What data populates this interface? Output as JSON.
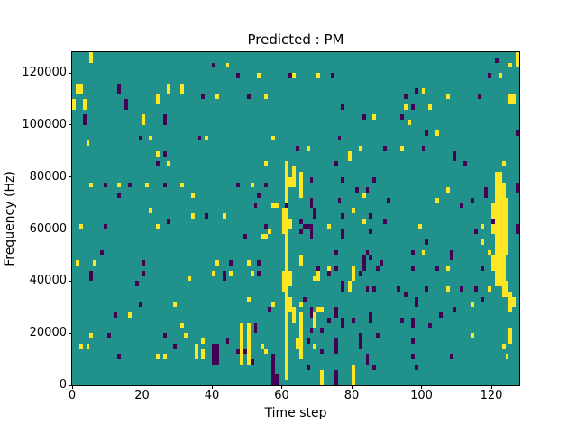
{
  "title": "Predicted : PM",
  "xlabel": "Time step",
  "ylabel": "Frequency (Hz)",
  "colors": {
    "figure_background": "#ffffff",
    "plot_background_mid": "#21918c",
    "yellow": "#fde725",
    "purple": "#440154",
    "axis": "#000000"
  },
  "chart_data": {
    "type": "heatmap",
    "title": "Predicted : PM",
    "xlabel": "Time step",
    "ylabel": "Frequency (Hz)",
    "colormap": "viridis",
    "legend": "none",
    "grid_lines": "off",
    "x_range": [
      0,
      128
    ],
    "y_range": [
      0,
      128000
    ],
    "x_ticks": [
      0,
      20,
      40,
      60,
      80,
      100,
      120
    ],
    "y_ticks": [
      0,
      20000,
      40000,
      60000,
      80000,
      100000,
      120000
    ],
    "grid": {
      "time_steps": 128,
      "freq_bins": 64,
      "hz_per_bin": 2000
    },
    "value_classes": {
      "background": "mid (teal)",
      "yellow": "high",
      "purple": "low"
    },
    "cell_format": "[time_step, bin] or [time_step, bin_start, bin_end] (bin = freq/2000)",
    "cells": {
      "yellow": [
        [
          5,
          62,
          63
        ],
        [
          1,
          56,
          57
        ],
        [
          2,
          56,
          57
        ],
        [
          27,
          56,
          57
        ],
        [
          31,
          56,
          57
        ],
        [
          0,
          53,
          54
        ],
        [
          3,
          53,
          54
        ],
        [
          24,
          54,
          55
        ],
        [
          20,
          50,
          51
        ],
        [
          4,
          46
        ],
        [
          22,
          47
        ],
        [
          24,
          44
        ],
        [
          44,
          61
        ],
        [
          53,
          59
        ],
        [
          63,
          59
        ],
        [
          41,
          55
        ],
        [
          55,
          55
        ],
        [
          38,
          47
        ],
        [
          57,
          47
        ],
        [
          70,
          59
        ],
        [
          95,
          53
        ],
        [
          86,
          51
        ],
        [
          96,
          50
        ],
        [
          67,
          45
        ],
        [
          82,
          45
        ],
        [
          94,
          45
        ],
        [
          79,
          43,
          44
        ],
        [
          127,
          61,
          63
        ],
        [
          125,
          61
        ],
        [
          122,
          59
        ],
        [
          100,
          56
        ],
        [
          107,
          55
        ],
        [
          125,
          54,
          55
        ],
        [
          126,
          54,
          55
        ],
        [
          102,
          53
        ],
        [
          104,
          48
        ],
        [
          27,
          42
        ],
        [
          5,
          38
        ],
        [
          13,
          38
        ],
        [
          21,
          38
        ],
        [
          31,
          38
        ],
        [
          22,
          33
        ],
        [
          2,
          30
        ],
        [
          24,
          30
        ],
        [
          1,
          23
        ],
        [
          6,
          23
        ],
        [
          55,
          42
        ],
        [
          51,
          38
        ],
        [
          34,
          36
        ],
        [
          57,
          34
        ],
        [
          58,
          34
        ],
        [
          34,
          32
        ],
        [
          43,
          32
        ],
        [
          56,
          29
        ],
        [
          54,
          28
        ],
        [
          55,
          28
        ],
        [
          41,
          23
        ],
        [
          50,
          23
        ],
        [
          65,
          36,
          40
        ],
        [
          83,
          36
        ],
        [
          80,
          33
        ],
        [
          83,
          31
        ],
        [
          73,
          30
        ],
        [
          65,
          23,
          24
        ],
        [
          73,
          22
        ],
        [
          80,
          22
        ],
        [
          123,
          42
        ],
        [
          107,
          37
        ],
        [
          104,
          35
        ],
        [
          99,
          30
        ],
        [
          117,
          30
        ],
        [
          117,
          27
        ],
        [
          119,
          25
        ],
        [
          100,
          25
        ],
        [
          107,
          22
        ],
        [
          29,
          15
        ],
        [
          16,
          13
        ],
        [
          31,
          11
        ],
        [
          5,
          9
        ],
        [
          2,
          7
        ],
        [
          4,
          7
        ],
        [
          24,
          5
        ],
        [
          26,
          5
        ],
        [
          33,
          20
        ],
        [
          40,
          21
        ],
        [
          45,
          21
        ],
        [
          51,
          21
        ],
        [
          50,
          16
        ],
        [
          57,
          15
        ],
        [
          32,
          9
        ],
        [
          37,
          8
        ],
        [
          35,
          5,
          7
        ],
        [
          37,
          5,
          6
        ],
        [
          48,
          4,
          11
        ],
        [
          50,
          4,
          11
        ],
        [
          54,
          7
        ],
        [
          55,
          6
        ],
        [
          64,
          7,
          8
        ],
        [
          69,
          20
        ],
        [
          70,
          20,
          21
        ],
        [
          80,
          20,
          21
        ],
        [
          79,
          18,
          19
        ],
        [
          65,
          15
        ],
        [
          70,
          14
        ],
        [
          71,
          14
        ],
        [
          65,
          5,
          13
        ],
        [
          69,
          11,
          13
        ],
        [
          69,
          7
        ],
        [
          71,
          0,
          2
        ],
        [
          80,
          0,
          3
        ],
        [
          107,
          18
        ],
        [
          119,
          18
        ],
        [
          114,
          15
        ],
        [
          126,
          15,
          16
        ],
        [
          114,
          9
        ],
        [
          125,
          8,
          10
        ],
        [
          123,
          7
        ],
        [
          124,
          5
        ],
        [
          60,
          18,
          21
        ],
        [
          60,
          29,
          33
        ],
        [
          61,
          1,
          33
        ],
        [
          61,
          35,
          42
        ],
        [
          62,
          38,
          39
        ],
        [
          62,
          30,
          31
        ],
        [
          62,
          19,
          21
        ],
        [
          62,
          14,
          16
        ],
        [
          63,
          38,
          41
        ],
        [
          63,
          12,
          14
        ],
        [
          120,
          22,
          24
        ],
        [
          120,
          29,
          34
        ],
        [
          121,
          19,
          40
        ],
        [
          122,
          19,
          40
        ],
        [
          123,
          17,
          38
        ],
        [
          124,
          25,
          35
        ],
        [
          124,
          17,
          19
        ],
        [
          125,
          14,
          17
        ]
      ],
      "purple": [
        [
          13,
          56,
          57
        ],
        [
          15,
          53,
          54
        ],
        [
          3,
          50,
          51
        ],
        [
          26,
          50,
          51
        ],
        [
          19,
          47
        ],
        [
          26,
          44
        ],
        [
          40,
          61
        ],
        [
          47,
          59
        ],
        [
          62,
          59
        ],
        [
          37,
          55
        ],
        [
          50,
          55
        ],
        [
          36,
          47
        ],
        [
          64,
          45
        ],
        [
          74,
          59
        ],
        [
          95,
          55
        ],
        [
          77,
          53
        ],
        [
          83,
          51
        ],
        [
          94,
          51
        ],
        [
          76,
          47
        ],
        [
          89,
          45
        ],
        [
          121,
          62
        ],
        [
          119,
          59
        ],
        [
          98,
          56
        ],
        [
          116,
          55
        ],
        [
          97,
          53
        ],
        [
          101,
          48
        ],
        [
          127,
          48
        ],
        [
          100,
          45
        ],
        [
          109,
          43,
          44
        ],
        [
          24,
          42
        ],
        [
          9,
          38
        ],
        [
          16,
          38
        ],
        [
          26,
          38
        ],
        [
          13,
          36
        ],
        [
          27,
          31
        ],
        [
          9,
          30
        ],
        [
          8,
          25
        ],
        [
          20,
          23
        ],
        [
          47,
          38
        ],
        [
          55,
          38
        ],
        [
          53,
          36
        ],
        [
          52,
          34
        ],
        [
          61,
          34
        ],
        [
          38,
          32
        ],
        [
          55,
          30
        ],
        [
          49,
          28
        ],
        [
          45,
          23
        ],
        [
          53,
          23
        ],
        [
          75,
          42
        ],
        [
          68,
          39
        ],
        [
          77,
          39
        ],
        [
          86,
          39
        ],
        [
          81,
          37
        ],
        [
          84,
          37
        ],
        [
          90,
          35
        ],
        [
          76,
          35
        ],
        [
          68,
          34,
          35
        ],
        [
          69,
          32,
          33
        ],
        [
          77,
          32
        ],
        [
          85,
          32
        ],
        [
          89,
          31
        ],
        [
          65,
          31
        ],
        [
          66,
          30
        ],
        [
          67,
          30
        ],
        [
          65,
          29
        ],
        [
          68,
          28,
          30
        ],
        [
          77,
          28,
          29
        ],
        [
          85,
          29
        ],
        [
          75,
          25
        ],
        [
          84,
          25
        ],
        [
          83,
          22,
          24
        ],
        [
          85,
          24
        ],
        [
          70,
          22
        ],
        [
          75,
          22
        ],
        [
          87,
          22
        ],
        [
          88,
          23
        ],
        [
          112,
          42
        ],
        [
          118,
          36,
          37
        ],
        [
          127,
          37,
          38
        ],
        [
          114,
          35
        ],
        [
          111,
          34
        ],
        [
          120,
          31
        ],
        [
          115,
          29
        ],
        [
          127,
          29,
          30
        ],
        [
          101,
          27
        ],
        [
          108,
          24,
          25
        ],
        [
          97,
          25
        ],
        [
          97,
          22
        ],
        [
          104,
          22
        ],
        [
          117,
          22
        ],
        [
          5,
          20,
          21
        ],
        [
          20,
          21
        ],
        [
          18,
          19
        ],
        [
          19,
          15
        ],
        [
          12,
          13
        ],
        [
          10,
          9
        ],
        [
          26,
          9
        ],
        [
          29,
          7
        ],
        [
          13,
          5
        ],
        [
          43,
          20,
          21
        ],
        [
          53,
          21
        ],
        [
          56,
          14
        ],
        [
          40,
          4,
          7
        ],
        [
          41,
          4,
          7
        ],
        [
          44,
          8
        ],
        [
          47,
          6
        ],
        [
          49,
          6
        ],
        [
          52,
          10,
          11
        ],
        [
          51,
          4
        ],
        [
          57,
          0,
          5
        ],
        [
          58,
          0,
          1
        ],
        [
          73,
          21
        ],
        [
          82,
          21
        ],
        [
          77,
          18,
          19
        ],
        [
          84,
          18
        ],
        [
          86,
          18
        ],
        [
          93,
          18
        ],
        [
          95,
          17
        ],
        [
          66,
          16
        ],
        [
          68,
          13,
          14
        ],
        [
          75,
          13,
          14
        ],
        [
          68,
          10
        ],
        [
          71,
          10
        ],
        [
          73,
          12
        ],
        [
          77,
          11,
          12
        ],
        [
          80,
          12
        ],
        [
          85,
          12,
          13
        ],
        [
          94,
          12
        ],
        [
          97,
          11,
          12
        ],
        [
          67,
          8
        ],
        [
          71,
          6
        ],
        [
          75,
          6,
          8
        ],
        [
          82,
          7,
          9
        ],
        [
          87,
          9
        ],
        [
          84,
          4,
          5
        ],
        [
          86,
          3
        ],
        [
          67,
          3
        ],
        [
          75,
          0,
          2
        ],
        [
          101,
          18
        ],
        [
          111,
          18
        ],
        [
          115,
          18
        ],
        [
          117,
          16
        ],
        [
          98,
          15,
          16
        ],
        [
          109,
          14
        ],
        [
          105,
          13
        ],
        [
          102,
          11
        ],
        [
          97,
          8
        ],
        [
          97,
          5
        ],
        [
          108,
          5
        ],
        [
          98,
          3
        ]
      ]
    }
  }
}
